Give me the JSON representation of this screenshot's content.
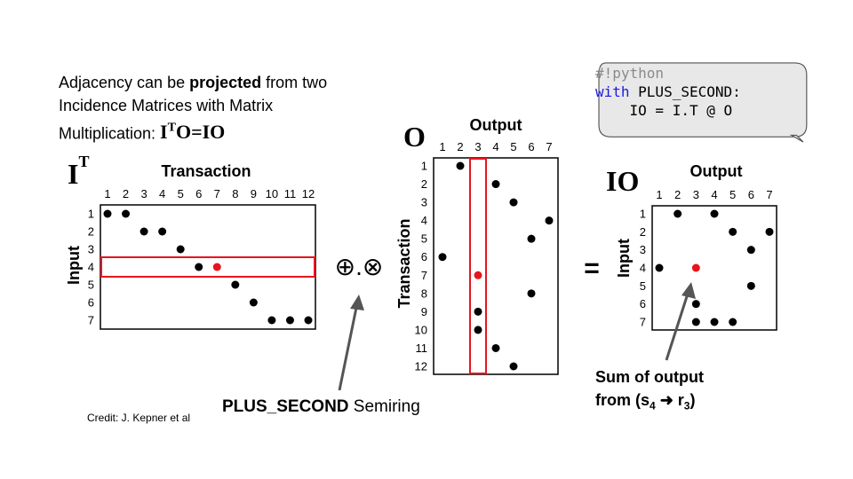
{
  "intro": {
    "line1_a": "Adjacency can be ",
    "line1_bold": "projected",
    "line1_b": " from two",
    "line2": "Incidence Matrices with Matrix",
    "line3": "Multiplication: ",
    "eq_I": "I",
    "eq_T": "T",
    "eq_rest": "O=IO"
  },
  "code": {
    "comment": "#!python",
    "kw_with": "with",
    "line2_rest": " PLUS_SECOND:",
    "line3": "    IO = I.T @ O"
  },
  "matrices": {
    "IT": {
      "name_main": "I",
      "name_sup": "T",
      "col_title": "Transaction",
      "row_title": "Input",
      "cols": [
        "1",
        "2",
        "3",
        "4",
        "5",
        "6",
        "7",
        "8",
        "9",
        "10",
        "11",
        "12"
      ],
      "rows": [
        "1",
        "2",
        "3",
        "4",
        "5",
        "6",
        "7"
      ],
      "dots": [
        [
          1,
          1
        ],
        [
          1,
          2
        ],
        [
          2,
          3
        ],
        [
          2,
          4
        ],
        [
          3,
          5
        ],
        [
          4,
          6
        ],
        [
          4,
          7,
          "red"
        ],
        [
          5,
          8
        ],
        [
          6,
          9
        ],
        [
          7,
          10
        ],
        [
          7,
          11
        ],
        [
          7,
          12
        ]
      ],
      "highlight": "row 4"
    },
    "O": {
      "name": "O",
      "col_title": "Output",
      "row_title": "Transaction",
      "cols": [
        "1",
        "2",
        "3",
        "4",
        "5",
        "6",
        "7"
      ],
      "rows": [
        "1",
        "2",
        "3",
        "4",
        "5",
        "6",
        "7",
        "8",
        "9",
        "10",
        "11",
        "12"
      ],
      "dots": [
        [
          1,
          2
        ],
        [
          2,
          4
        ],
        [
          3,
          5
        ],
        [
          4,
          7
        ],
        [
          5,
          6
        ],
        [
          6,
          1
        ],
        [
          7,
          3,
          "red"
        ],
        [
          8,
          6
        ],
        [
          9,
          3
        ],
        [
          10,
          3
        ],
        [
          11,
          4
        ],
        [
          12,
          5
        ]
      ],
      "highlight": "column 3"
    },
    "IO": {
      "name": "IO",
      "col_title": "Output",
      "row_title": "Input",
      "cols": [
        "1",
        "2",
        "3",
        "4",
        "5",
        "6",
        "7"
      ],
      "rows": [
        "1",
        "2",
        "3",
        "4",
        "5",
        "6",
        "7"
      ],
      "dots": [
        [
          1,
          2
        ],
        [
          1,
          4
        ],
        [
          2,
          5
        ],
        [
          2,
          7
        ],
        [
          3,
          6
        ],
        [
          4,
          1
        ],
        [
          4,
          3,
          "red"
        ],
        [
          5,
          6
        ],
        [
          6,
          3
        ],
        [
          7,
          3
        ],
        [
          7,
          4
        ],
        [
          7,
          5
        ]
      ]
    }
  },
  "operators": {
    "semiring_symbol": "⊕.⊗",
    "equals": "="
  },
  "captions": {
    "semiring_bold": "PLUS_SECOND",
    "semiring_rest": " Semiring",
    "sum_line1": "Sum of output",
    "sum_line2_a": "from (s",
    "sum_sub_4": "4",
    "sum_arrow": " ➜ r",
    "sum_sub_3": "3",
    "sum_line2_b": ")",
    "credit": "Credit: J. Kepner et al"
  },
  "colors": {
    "dot": "#000000",
    "highlight_dot": "#e8141e",
    "highlight_box": "#e8141e",
    "bubble_fill": "#e8e8e8",
    "bubble_stroke": "#555555",
    "arrow": "#555555"
  }
}
